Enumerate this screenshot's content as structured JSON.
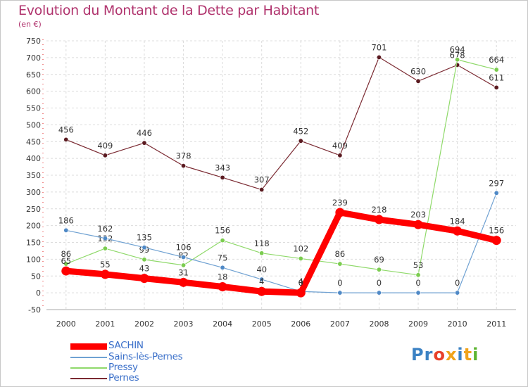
{
  "header": {
    "title": "Evolution du Montant de la Dette par Habitant",
    "subtitle": "(en €)"
  },
  "logo": {
    "letters": [
      "P",
      "r",
      "o",
      "x",
      "i",
      "t",
      "i"
    ],
    "colors": [
      "#3b82c4",
      "#3b82c4",
      "#e8412b",
      "#f0a31a",
      "#3b82c4",
      "#f0a31a",
      "#5cb531"
    ]
  },
  "chart_data": {
    "type": "line",
    "title": "Evolution du Montant de la Dette par Habitant",
    "subtitle": "(en €)",
    "x": [
      "2000",
      "2001",
      "2002",
      "2003",
      "2004",
      "2005",
      "2006",
      "2007",
      "2008",
      "2009",
      "2010",
      "2011"
    ],
    "ylim": [
      -50,
      750
    ],
    "yticks": [
      -50,
      0,
      50,
      100,
      150,
      200,
      250,
      300,
      350,
      400,
      450,
      500,
      550,
      600,
      650,
      700,
      750
    ],
    "grid": true,
    "legend_position": "bottom-left",
    "series": [
      {
        "name": "Pernes",
        "color": "#7b2a32",
        "marker": "#5a1a20",
        "width": 1.2,
        "values": [
          456,
          409,
          446,
          378,
          343,
          307,
          452,
          409,
          701,
          630,
          678,
          611
        ],
        "labels": [
          "456",
          "409",
          "446",
          "378",
          "343",
          "307",
          "452",
          "409",
          "701",
          "630",
          "678",
          "611"
        ]
      },
      {
        "name": "Pressy",
        "color": "#8fd96a",
        "marker": "#7bcc4f",
        "width": 1.2,
        "values": [
          86,
          132,
          99,
          82,
          156,
          118,
          102,
          86,
          69,
          53,
          694,
          664
        ],
        "labels": [
          "86",
          "132",
          "99",
          "82",
          "156",
          "118",
          "102",
          "86",
          "69",
          "53",
          "694",
          "664"
        ]
      },
      {
        "name": "Sains-lès-Pernes",
        "color": "#6fa1d2",
        "marker": "#4f89c6",
        "width": 1.2,
        "values": [
          186,
          162,
          135,
          106,
          75,
          40,
          4,
          0,
          0,
          0,
          0,
          297
        ],
        "labels": [
          "186",
          "162",
          "135",
          "106",
          "75",
          "40",
          "4",
          "0",
          "0",
          "0",
          "0",
          "297"
        ]
      },
      {
        "name": "SACHIN",
        "color": "#ff0000",
        "marker": "#ff0000",
        "width": 9,
        "values": [
          65,
          55,
          43,
          31,
          18,
          4,
          0,
          239,
          218,
          203,
          184,
          156
        ],
        "labels": [
          "65",
          "55",
          "43",
          "31",
          "18",
          "4",
          "0",
          "239",
          "218",
          "203",
          "184",
          "156"
        ]
      }
    ],
    "legend": [
      {
        "name": "SACHIN",
        "color": "#ff0000",
        "width": 9
      },
      {
        "name": "Sains-lès-Pernes",
        "color": "#6fa1d2",
        "width": 2
      },
      {
        "name": "Pressy",
        "color": "#8fd96a",
        "width": 2
      },
      {
        "name": "Pernes",
        "color": "#7b2a32",
        "width": 2
      }
    ]
  }
}
